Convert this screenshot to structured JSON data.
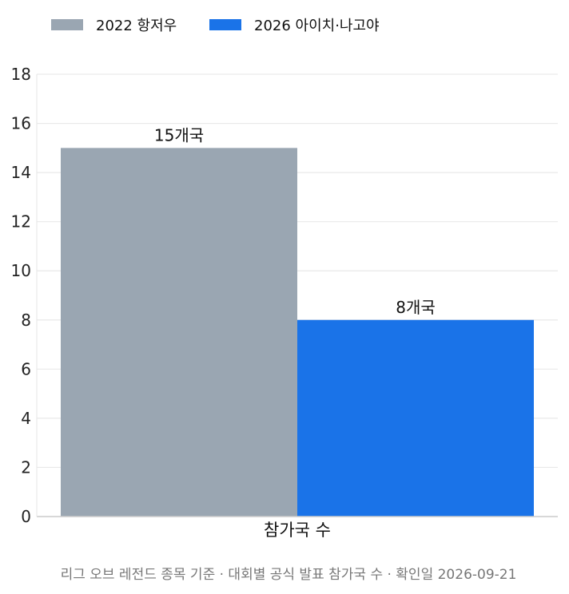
{
  "chart_data": {
    "type": "bar",
    "categories": [
      "참가국 수"
    ],
    "series": [
      {
        "name": "2022 항저우",
        "values": [
          15
        ],
        "label": "15개국",
        "color": "#9aa6b2"
      },
      {
        "name": "2026 아이치·나고야",
        "values": [
          8
        ],
        "label": "8개국",
        "color": "#1a73e8"
      }
    ],
    "ylim": [
      0,
      18
    ],
    "yticks": [
      0,
      2,
      4,
      6,
      8,
      10,
      12,
      14,
      16,
      18
    ],
    "grid": true,
    "legend": "top-left",
    "footnote": "리그 오브 레전드 종목 기준 · 대회별 공식 발표 참가국 수 · 확인일 2026-09-21"
  }
}
